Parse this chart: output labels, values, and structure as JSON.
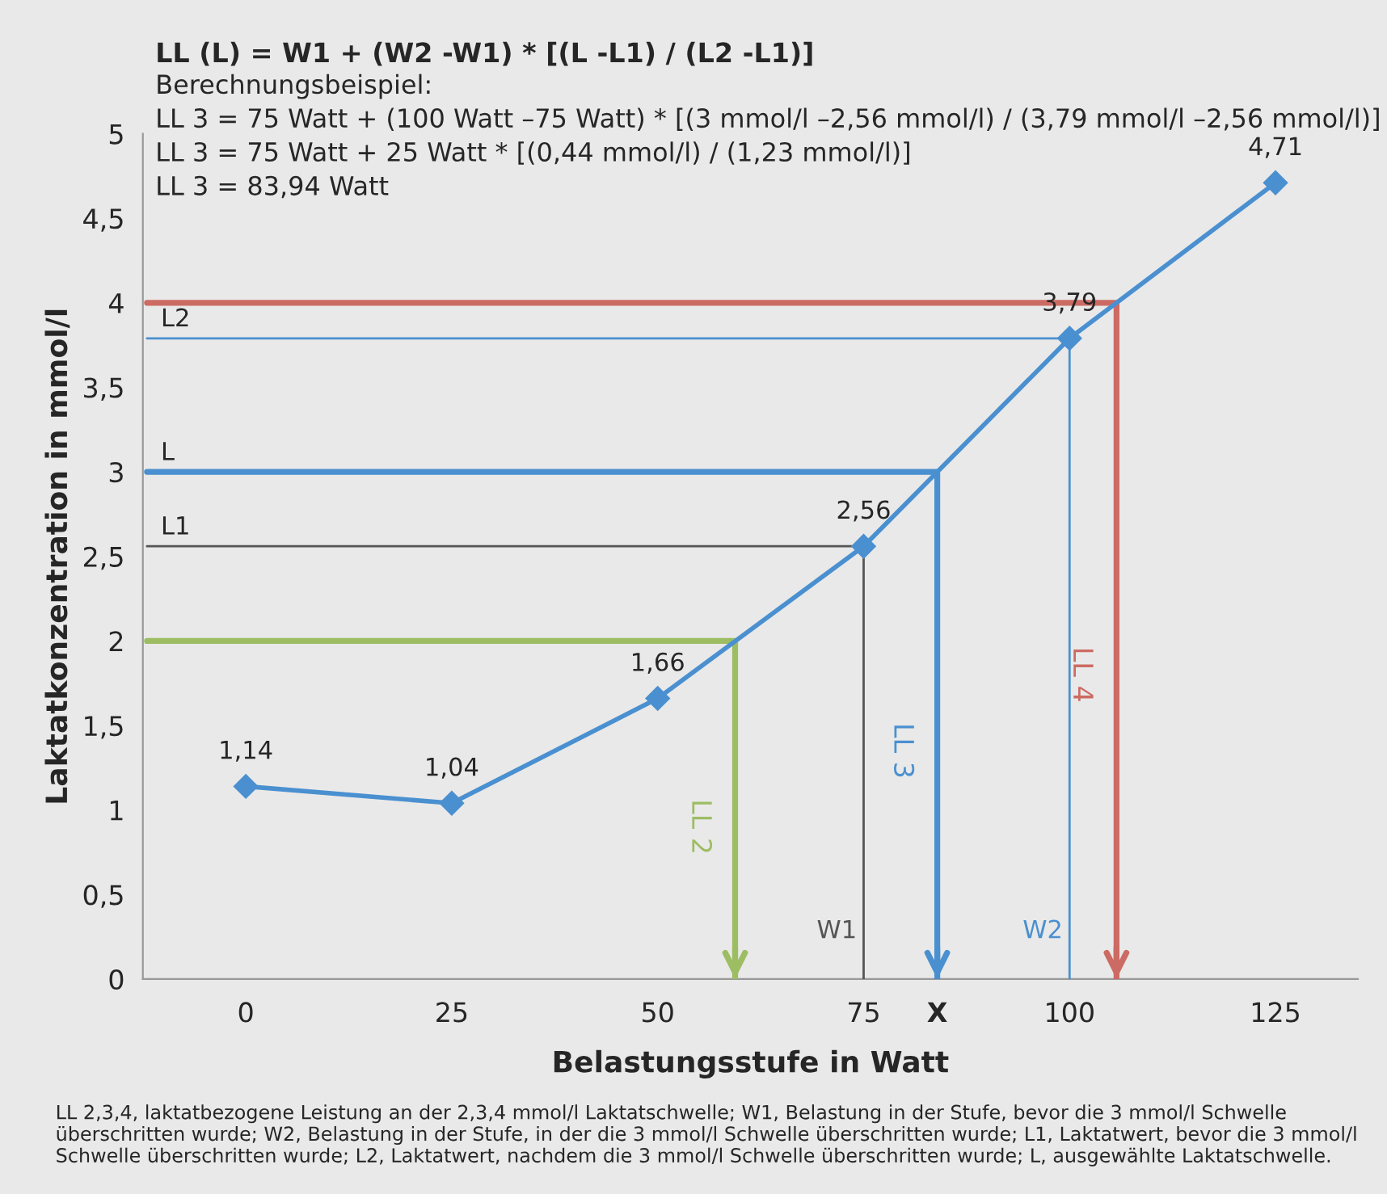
{
  "chart_data": {
    "type": "line",
    "title": "LL (L) = W1 + (W2 -W1) * [(L -L1) / (L2 -L1)]",
    "subtitle": "Berechnungsbeispiel:\nLL 3 = 75 Watt + (100 Watt –75 Watt) * [(3 mmol/l –2,56 mmol/l) / (3,79 mmol/l –2,56 mmol/l)]\nLL 3 = 75 Watt + 25 Watt * [(0,44 mmol/l) / (1,23 mmol/l)]\nLL 3 = 83,94 Watt",
    "xlabel": "Belastungsstufe in Watt",
    "ylabel": "Laktatkonzentration in mmol/l",
    "annotations": [
      {
        "text": "X",
        "x": 83.94,
        "y": 0
      },
      {
        "text": "L2",
        "y": 3.79
      },
      {
        "text": "L",
        "y": 3
      },
      {
        "text": "L1",
        "y": 2.56
      },
      "LL 2,3,4, laktatbezogene Leistung an der 2,3,4 mmol/l Laktatschwelle; W1, Belastung in der Stufe, bevor die 3 mmol/l Schwelle überschritten wurde; W2, Belastung in der Stufe, in der die 3 mmol/l Schwelle überschritten wurde; L1, Laktatwert, bevor die 3 mmol/l Schwelle überschritten wurde; L2, Laktatwert, nachdem die 3 mmol/l Schwelle überschritten wurde; L, ausgewählte Laktatschwelle."
    ],
    "xlim": [
      -12.5,
      135
    ],
    "ylim": [
      0,
      5
    ],
    "xticks": [
      0,
      25,
      50,
      75,
      100,
      125
    ],
    "yticks": [
      0,
      {
        "value": 0.5,
        "label": "0,5"
      },
      1,
      {
        "value": 1.5,
        "label": "1,5"
      },
      2,
      {
        "value": 2.5,
        "label": "2,5"
      },
      3,
      {
        "value": 3.5,
        "label": "3,5"
      },
      4,
      {
        "value": 4.5,
        "label": "4,5"
      },
      5
    ],
    "series": [
      {
        "name": "W2",
        "color": "#4a90d0",
        "x": [
          100,
          100,
          -12
        ],
        "values": [
          0,
          3.79,
          3.79
        ]
      },
      {
        "name": "W1",
        "color": "#555555",
        "x": [
          75,
          75,
          -12
        ],
        "values": [
          0,
          2.56,
          2.56
        ]
      },
      {
        "name": "LL 2",
        "color": "#9dbd63",
        "x": [
          -12,
          59.4,
          59.4
        ],
        "values": [
          2,
          2,
          0
        ]
      },
      {
        "name": "LL 3",
        "color": "#4a90d0",
        "x": [
          -12,
          83.94,
          83.94
        ],
        "values": [
          3,
          3,
          0
        ]
      },
      {
        "name": "LL 4",
        "color": "#cc6b63",
        "x": [
          -12,
          105.7,
          105.7
        ],
        "values": [
          4,
          4,
          0
        ]
      },
      {
        "color": "#4a90d0",
        "marker": "diamond",
        "x": [
          0,
          25,
          50,
          75,
          100,
          125
        ],
        "values": [
          1.14,
          1.04,
          1.66,
          2.56,
          3.79,
          4.71
        ],
        "value_labels": [
          "1,14",
          "1,04",
          "1,66",
          "2,56",
          "3,79",
          "4,71"
        ]
      }
    ]
  }
}
